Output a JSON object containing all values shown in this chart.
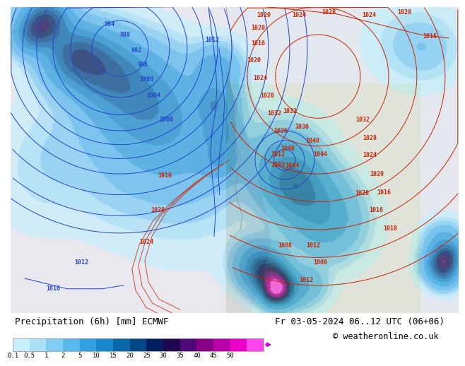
{
  "title_left": "Precipitation (6h) [mm] ECMWF",
  "title_right": "Fr 03-05-2024 06..12 UTC (06+06)",
  "copyright": "© weatheronline.co.uk",
  "colorbar_labels": [
    "0.1",
    "0.5",
    "1",
    "2",
    "5",
    "10",
    "15",
    "20",
    "25",
    "30",
    "35",
    "40",
    "45",
    "50"
  ],
  "colorbar_colors": [
    "#c8eefa",
    "#a8e0f8",
    "#80ccf4",
    "#58b8ee",
    "#30a0e0",
    "#1888cc",
    "#0868aa",
    "#044888",
    "#022060",
    "#200850",
    "#500878",
    "#880088",
    "#bb00aa",
    "#ee00cc",
    "#ff44ee"
  ],
  "ocean_left_color": "#e8eef4",
  "land_color": "#c8d89c",
  "mountain_color": "#b0a888",
  "ocean_right_color": "#ddeef8",
  "title_fontsize": 9,
  "copyright_fontsize": 8.5,
  "label_fontsize": 7,
  "blue_isobar_color": "#2244cc",
  "red_isobar_color": "#cc2200"
}
